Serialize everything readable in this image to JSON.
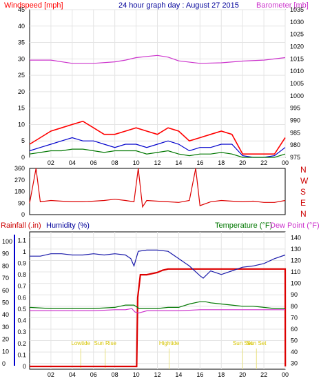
{
  "header": {
    "title": "24 hour graph day : August 27 2015",
    "windspeed_label": "Windspeed [mph]",
    "barometer_label": "Barometer [mb]"
  },
  "wind_panel": {
    "compass_letters": [
      "N",
      "W",
      "S",
      "E",
      "N"
    ],
    "direction_ticks": [
      "360",
      "270",
      "180",
      "90",
      "0"
    ]
  },
  "lower_panel": {
    "rainfall_label": "Rainfall (.in)",
    "humidity_label": "Humidity (%)",
    "temperature_label": "Temperature (°F)",
    "dewpoint_label": "Dew Point (°F)",
    "events": [
      {
        "label": "Lowtide",
        "hour": 4.8
      },
      {
        "label": "Sun Rise",
        "hour": 7.1
      },
      {
        "label": "Hightide",
        "hour": 13.1
      },
      {
        "label": "Sun Set",
        "hour": 20.0
      },
      {
        "label": "Sun Set",
        "hour": 21.3
      }
    ]
  },
  "colors": {
    "windspeed": "#ff0000",
    "gust": "#0000cc",
    "wind_avg": "#007700",
    "barometer": "#cc33cc",
    "direction": "#dd0000",
    "rainfall": "#dd0000",
    "humidity": "#1a1aaa",
    "temperature": "#007700",
    "dewpoint": "#cc33cc",
    "event_line": "#e8e080"
  },
  "chart_data": [
    {
      "type": "line",
      "title": "24 hour graph day : August 27 2015",
      "x_ticks": [
        "02",
        "04",
        "06",
        "08",
        "10",
        "12",
        "14",
        "16",
        "18",
        "20",
        "22",
        "00"
      ],
      "xlim": [
        0,
        24
      ],
      "y_left": {
        "label": "Windspeed [mph]",
        "ticks": [
          0,
          5,
          10,
          15,
          20,
          25,
          30,
          35,
          40,
          45
        ],
        "lim": [
          0,
          45
        ]
      },
      "y_right": {
        "label": "Barometer [mb]",
        "ticks": [
          975,
          980,
          985,
          990,
          995,
          1000,
          1005,
          1010,
          1015,
          1020,
          1025,
          1030,
          1035
        ],
        "lim": [
          975,
          1035
        ]
      },
      "series": [
        {
          "name": "Windspeed",
          "axis": "left",
          "x": [
            0,
            1,
            2,
            3,
            4,
            5,
            6,
            7,
            8,
            9,
            10,
            11,
            12,
            13,
            14,
            15,
            16,
            17,
            18,
            19,
            20,
            21,
            22,
            23,
            24
          ],
          "values": [
            4,
            6,
            8,
            9,
            10,
            11,
            9,
            7,
            7,
            8,
            9,
            8,
            7,
            9,
            8,
            5,
            6,
            7,
            8,
            7,
            1,
            1,
            1,
            1,
            6
          ]
        },
        {
          "name": "Gust",
          "axis": "left",
          "x": [
            0,
            1,
            2,
            3,
            4,
            5,
            6,
            7,
            8,
            9,
            10,
            11,
            12,
            13,
            14,
            15,
            16,
            17,
            18,
            19,
            20,
            21,
            22,
            23,
            24
          ],
          "values": [
            2,
            3,
            4,
            5,
            6,
            5,
            5,
            4,
            3,
            4,
            4,
            3,
            4,
            5,
            4,
            2,
            3,
            3,
            4,
            4,
            0.5,
            0,
            0,
            0.5,
            3
          ]
        },
        {
          "name": "Average",
          "axis": "left",
          "x": [
            0,
            1,
            2,
            3,
            4,
            5,
            6,
            7,
            8,
            9,
            10,
            11,
            12,
            13,
            14,
            15,
            16,
            17,
            18,
            19,
            20,
            21,
            22,
            23,
            24
          ],
          "values": [
            1,
            1.5,
            2,
            2,
            2.5,
            2.5,
            2,
            1.5,
            2,
            2,
            2,
            1,
            1.5,
            2,
            1,
            0.5,
            1,
            1,
            1.5,
            1,
            0,
            0,
            0,
            0,
            1
          ]
        },
        {
          "name": "Barometer",
          "axis": "right",
          "x": [
            0,
            2,
            4,
            6,
            8,
            9,
            10,
            11,
            12,
            13,
            14,
            16,
            18,
            20,
            22,
            24
          ],
          "values": [
            1014.5,
            1014.5,
            1013.2,
            1013.2,
            1013.8,
            1014.5,
            1015.5,
            1016,
            1016.4,
            1015.7,
            1014.2,
            1013.2,
            1013.4,
            1014.1,
            1014.5,
            1015.5
          ]
        }
      ]
    },
    {
      "type": "line",
      "ylabel": "",
      "y_ticks": [
        0,
        90,
        180,
        270,
        360
      ],
      "ylim": [
        0,
        360
      ],
      "x": [
        0,
        0.6,
        1,
        2,
        3,
        4,
        5,
        6,
        7,
        8,
        9,
        9.8,
        10.2,
        10.6,
        11,
        12,
        13,
        14,
        15,
        15.6,
        16,
        17,
        18,
        19,
        20,
        21,
        22,
        23,
        24
      ],
      "series": [
        {
          "name": "Wind Direction",
          "values": [
            90,
            360,
            100,
            110,
            105,
            100,
            100,
            105,
            110,
            120,
            110,
            100,
            360,
            60,
            110,
            105,
            100,
            95,
            110,
            360,
            70,
            100,
            110,
            105,
            100,
            105,
            95,
            95,
            110
          ]
        }
      ]
    },
    {
      "type": "line",
      "x_ticks": [
        "02",
        "04",
        "06",
        "08",
        "10",
        "12",
        "14",
        "16",
        "18",
        "20",
        "22",
        "00"
      ],
      "xlim": [
        0,
        24
      ],
      "y_left_outer": {
        "label": "Rainfall (.in)",
        "ticks": [
          0,
          0.1,
          0.2,
          0.3,
          0.4,
          0.5,
          0.6,
          0.7,
          0.8,
          0.9,
          1,
          1.1
        ],
        "lim": [
          0,
          1.15
        ]
      },
      "y_left_inner": {
        "label": "Humidity (%)",
        "ticks": [
          0,
          10,
          20,
          30,
          40,
          50,
          60,
          70,
          80,
          90,
          100
        ],
        "lim": [
          0,
          100
        ]
      },
      "y_right": {
        "label": "Temperature (°F)",
        "ticks": [
          30,
          40,
          50,
          60,
          70,
          80,
          90,
          100,
          110,
          120,
          130,
          140
        ],
        "lim": [
          25,
          145
        ]
      },
      "series": [
        {
          "name": "Rainfall",
          "axis": "left_outer",
          "x": [
            0,
            10.05,
            10.15,
            10.4,
            11,
            12,
            12.5,
            13,
            14,
            16,
            18,
            20,
            22,
            24,
            24.01
          ],
          "values": [
            0,
            0,
            0.6,
            0.8,
            0.8,
            0.82,
            0.84,
            0.85,
            0.85,
            0.85,
            0.85,
            0.85,
            0.85,
            0.85,
            0
          ]
        },
        {
          "name": "Humidity",
          "axis": "left_inner",
          "x": [
            0,
            1,
            2,
            3,
            4,
            5,
            6,
            7,
            8,
            9,
            9.5,
            9.8,
            10.2,
            11,
            12,
            13,
            14,
            15,
            16,
            16.3,
            17,
            18,
            19,
            20,
            21,
            22,
            23,
            24
          ],
          "values": [
            88,
            88,
            90,
            90,
            89,
            89,
            90,
            89,
            90,
            89,
            86,
            80,
            92,
            93,
            93,
            92,
            86,
            80,
            72,
            70,
            76,
            73,
            76,
            79,
            80,
            82,
            86,
            89
          ]
        },
        {
          "name": "Temperature",
          "axis": "right",
          "x": [
            0,
            2,
            4,
            6,
            8,
            9,
            9.8,
            10.3,
            11,
            12,
            13,
            14,
            15,
            16,
            16.5,
            17,
            18,
            19,
            20,
            21,
            22,
            23,
            24
          ],
          "values": [
            79,
            78,
            78,
            78,
            79,
            81,
            81,
            78,
            78,
            78,
            79,
            79,
            82,
            84,
            84,
            83,
            82,
            81,
            80,
            80,
            79,
            78,
            78
          ]
        },
        {
          "name": "Dew Point",
          "axis": "right",
          "x": [
            0,
            2,
            4,
            6,
            8,
            9,
            9.6,
            9.9,
            10.2,
            10.6,
            11,
            12,
            13,
            14,
            16,
            18,
            20,
            22,
            24
          ],
          "values": [
            76,
            76,
            76,
            76,
            77,
            77,
            78,
            75,
            74,
            75,
            76,
            76,
            76,
            76,
            77,
            77,
            77,
            77,
            77
          ]
        }
      ]
    }
  ]
}
